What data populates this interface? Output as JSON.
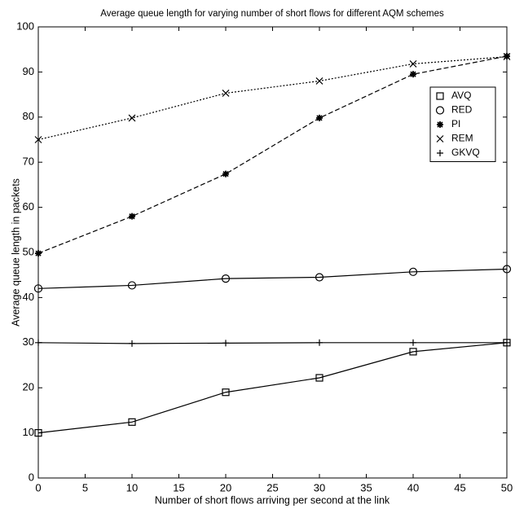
{
  "chart_data": {
    "type": "line",
    "title": "Average queue length for varying number of short flows for different AQM schemes",
    "x_label": "Number of short flows arriving per second at the link",
    "y_label": "Average queue length in packets",
    "x": [
      0,
      10,
      20,
      30,
      40,
      50
    ],
    "series": [
      {
        "name": "AVQ",
        "color": "#000000",
        "marker": "square",
        "dash": "solid",
        "values": [
          10,
          12.4,
          19,
          22.2,
          28,
          30
        ]
      },
      {
        "name": "RED",
        "color": "#000000",
        "marker": "circle",
        "dash": "solid",
        "values": [
          42,
          42.7,
          44.2,
          44.5,
          45.7,
          46.3
        ]
      },
      {
        "name": "PI",
        "color": "#000000",
        "marker": "star",
        "dash": "dashed",
        "values": [
          49.8,
          58,
          67.4,
          79.8,
          89.5,
          93.5
        ]
      },
      {
        "name": "REM",
        "color": "#000000",
        "marker": "x",
        "dash": "dotted",
        "values": [
          75,
          79.8,
          85.3,
          88,
          91.8,
          93.4
        ]
      },
      {
        "name": "GKVQ",
        "color": "#000000",
        "marker": "plus",
        "dash": "solid",
        "values": [
          30,
          29.8,
          29.9,
          30,
          30,
          30
        ]
      }
    ],
    "xlim": [
      0,
      50
    ],
    "xticks": [
      0,
      5,
      10,
      15,
      20,
      25,
      30,
      35,
      40,
      45,
      50
    ],
    "ylim": [
      0,
      100
    ],
    "yticks": [
      0,
      10,
      20,
      30,
      40,
      50,
      60,
      70,
      80,
      90,
      100
    ],
    "grid": false,
    "legend": "upper right"
  }
}
